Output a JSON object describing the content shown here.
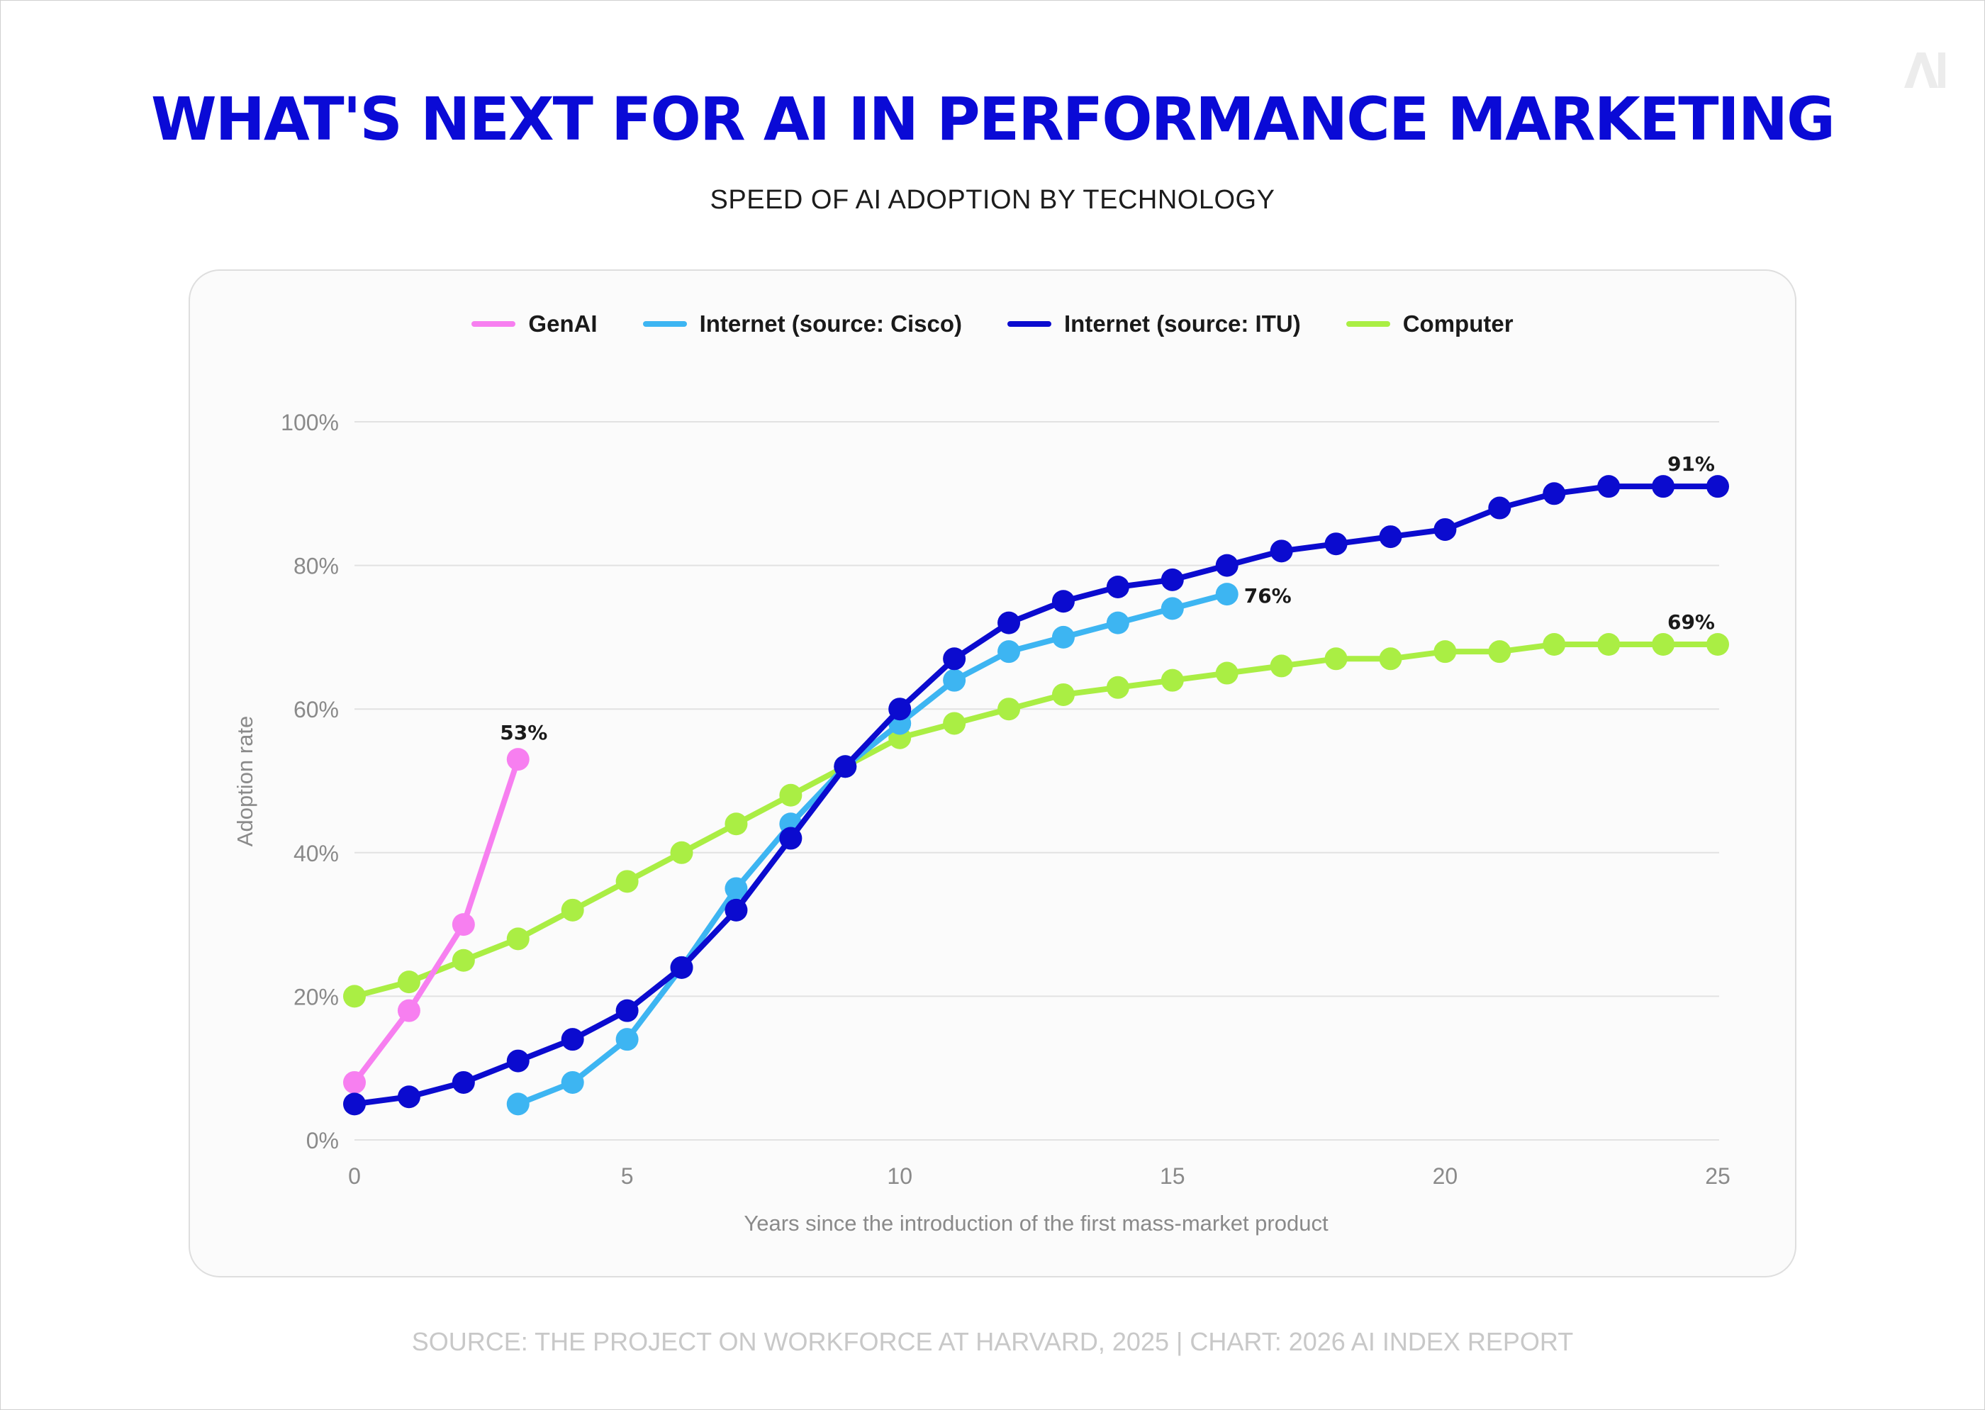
{
  "header": {
    "title": "WHAT'S NEXT FOR AI IN PERFORMANCE MARKETING",
    "subtitle": "SPEED OF AI ADOPTION BY TECHNOLOGY",
    "logo_text": "AI"
  },
  "footer": {
    "source": "SOURCE: THE PROJECT ON WORKFORCE AT HARVARD, 2025 | CHART: 2026 AI INDEX REPORT"
  },
  "chart_data": {
    "type": "line",
    "xlabel": "Years since the introduction of the first mass-market product",
    "ylabel": "Adoption rate",
    "xlim": [
      0,
      25
    ],
    "ylim": [
      0,
      100
    ],
    "xticks": [
      "0",
      "5",
      "10",
      "15",
      "20",
      "25"
    ],
    "xtick_values": [
      0,
      5,
      10,
      15,
      20,
      25
    ],
    "yticks": [
      "0%",
      "20%",
      "40%",
      "60%",
      "80%",
      "100%"
    ],
    "ytick_values": [
      0,
      20,
      40,
      60,
      80,
      100
    ],
    "grid": "horizontal",
    "legend_position": "top-center",
    "series": [
      {
        "name": "GenAI",
        "color": "#f77ff0",
        "x": [
          0,
          1,
          2,
          3
        ],
        "y": [
          8,
          18,
          30,
          53
        ],
        "end_label": "53%"
      },
      {
        "name": "Internet (source: Cisco)",
        "color": "#3db5f2",
        "x": [
          3,
          4,
          5,
          6,
          7,
          8,
          9,
          10,
          11,
          12,
          13,
          14,
          15,
          16
        ],
        "y": [
          5,
          8,
          14,
          24,
          35,
          44,
          52,
          58,
          64,
          68,
          70,
          72,
          74,
          76
        ],
        "end_label": "76%"
      },
      {
        "name": "Internet (source: ITU)",
        "color": "#0b0bcf",
        "x": [
          0,
          1,
          2,
          3,
          4,
          5,
          6,
          7,
          8,
          9,
          10,
          11,
          12,
          13,
          14,
          15,
          16,
          17,
          18,
          19,
          20,
          21,
          22,
          23,
          24,
          25
        ],
        "y": [
          5,
          6,
          8,
          11,
          14,
          18,
          24,
          32,
          42,
          52,
          60,
          67,
          72,
          75,
          77,
          78,
          80,
          82,
          83,
          84,
          85,
          88,
          90,
          91,
          91,
          91
        ],
        "end_label": "91%"
      },
      {
        "name": "Computer",
        "color": "#aaee44",
        "x": [
          0,
          1,
          2,
          3,
          4,
          5,
          6,
          7,
          8,
          9,
          10,
          11,
          12,
          13,
          14,
          15,
          16,
          17,
          18,
          19,
          20,
          21,
          22,
          23,
          24,
          25
        ],
        "y": [
          20,
          22,
          25,
          28,
          32,
          36,
          40,
          44,
          48,
          52,
          56,
          58,
          60,
          62,
          63,
          64,
          65,
          66,
          67,
          67,
          68,
          68,
          69,
          69,
          69,
          69
        ],
        "end_label": "69%"
      }
    ]
  }
}
